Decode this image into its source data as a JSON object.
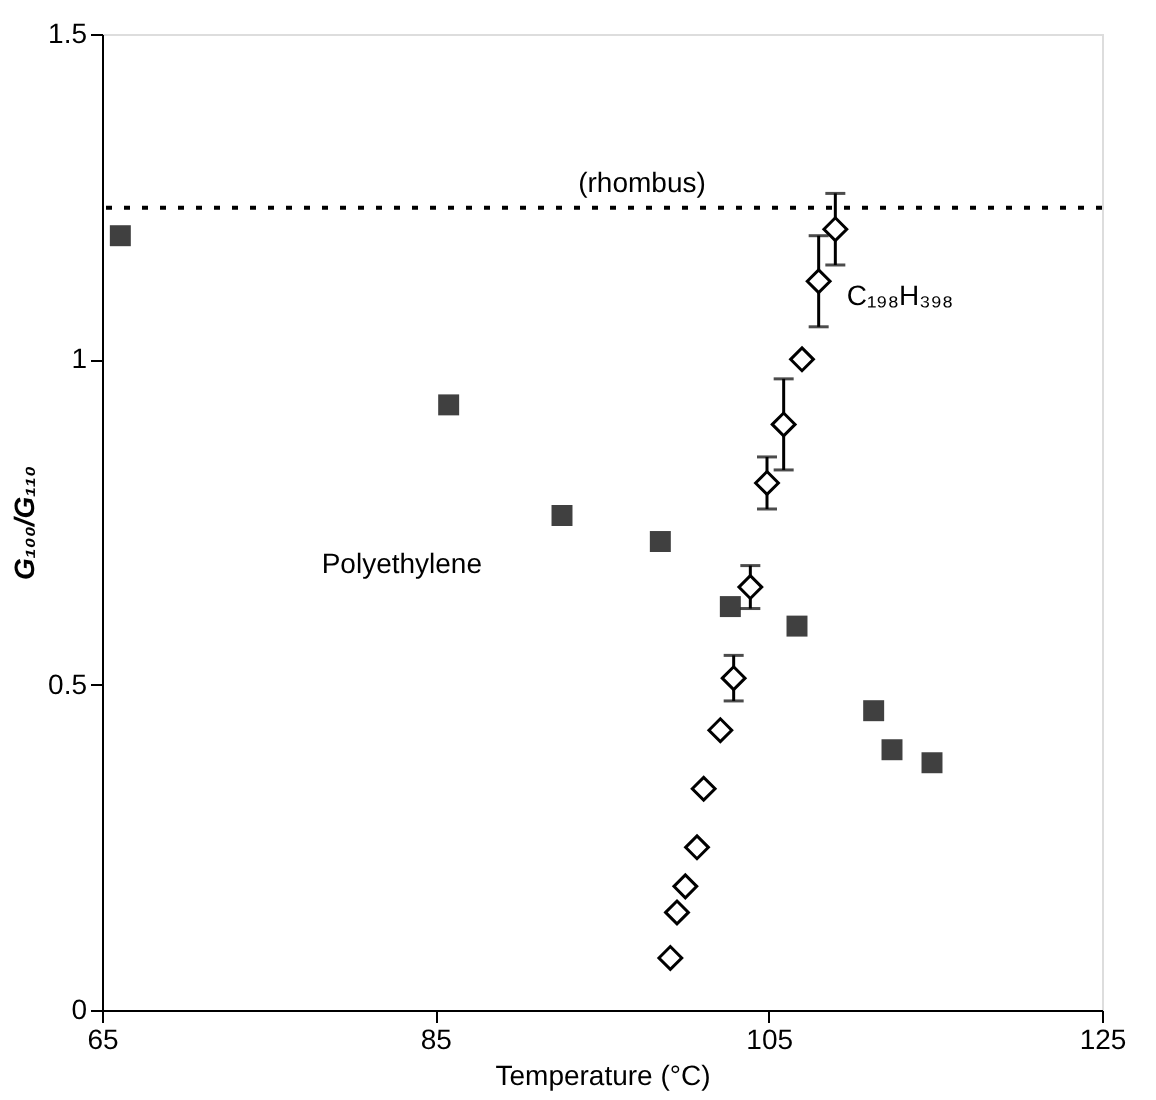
{
  "chart_data": {
    "type": "scatter",
    "xlabel": "Temperature (°C)",
    "ylabel": "G₁₀₀/G₁₁₀",
    "xlim": [
      65,
      125
    ],
    "ylim": [
      0,
      1.5
    ],
    "xticks": [
      65,
      85,
      105,
      125
    ],
    "yticks": [
      0,
      {
        "value": 0.5,
        "label": "0.5"
      },
      1,
      {
        "value": 1.5,
        "label": "1.5"
      }
    ],
    "grid": false,
    "series": [
      {
        "name": "Polyethylene",
        "color": "#404040",
        "marker": "square",
        "x": [
          66.1,
          85.8,
          92.6,
          98.5,
          102.7,
          106.7,
          111.3,
          112.4,
          114.8
        ],
        "values": [
          1.19,
          0.93,
          0.76,
          0.72,
          0.62,
          0.59,
          0.46,
          0.4,
          0.38
        ]
      },
      {
        "name": "C₁₉₈H₃₉₈",
        "color": "#000000",
        "marker": "diamond",
        "x": [
          99.1,
          99.5,
          100.0,
          100.7,
          101.1,
          102.1,
          102.9,
          103.9,
          104.9,
          105.9,
          107.0,
          108.0,
          109.0
        ],
        "values": [
          0.08,
          0.15,
          0.19,
          0.25,
          0.34,
          0.43,
          0.51,
          0.65,
          0.81,
          0.9,
          1.0,
          1.12,
          1.2
        ],
        "errors": [
          null,
          null,
          null,
          null,
          null,
          null,
          0.035,
          0.033,
          0.04,
          0.07,
          null,
          0.07,
          0.055
        ]
      }
    ],
    "ref_lines": [
      {
        "axis": "y",
        "value": 1.233,
        "label": "(rhombus)",
        "line_style": "dotted",
        "color": "#000000"
      }
    ]
  }
}
